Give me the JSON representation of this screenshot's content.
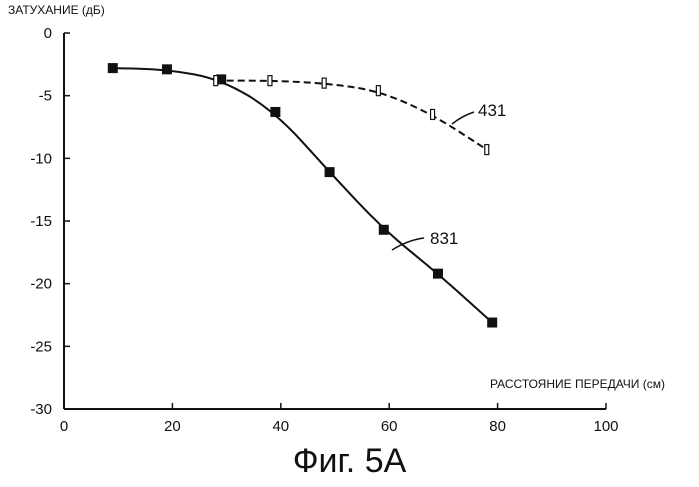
{
  "chart_data": {
    "type": "line",
    "ylabel": "ЗАТУХАНИЕ (дБ)",
    "xlabel": "РАССТОЯНИЕ ПЕРЕДАЧИ (см)",
    "xlim": [
      0,
      100
    ],
    "ylim": [
      -30,
      0
    ],
    "xticks": [
      0,
      20,
      40,
      60,
      80,
      100
    ],
    "yticks": [
      0,
      -5,
      -10,
      -15,
      -20,
      -25,
      -30
    ],
    "grid": false,
    "series": [
      {
        "name": "831",
        "marker": "filled-square",
        "line_style": "solid",
        "x": [
          9,
          19,
          29,
          39,
          49,
          59,
          69,
          79
        ],
        "y": [
          -2.8,
          -2.9,
          -3.7,
          -6.3,
          -11.1,
          -15.7,
          -19.2,
          -23.1
        ]
      },
      {
        "name": "431",
        "marker": "open-rectangle",
        "line_style": "dashed",
        "x": [
          28,
          38,
          48,
          58,
          68,
          78
        ],
        "y": [
          -3.8,
          -3.8,
          -4.0,
          -4.6,
          -6.5,
          -9.3
        ]
      }
    ]
  },
  "caption": "Фиг. 5А"
}
